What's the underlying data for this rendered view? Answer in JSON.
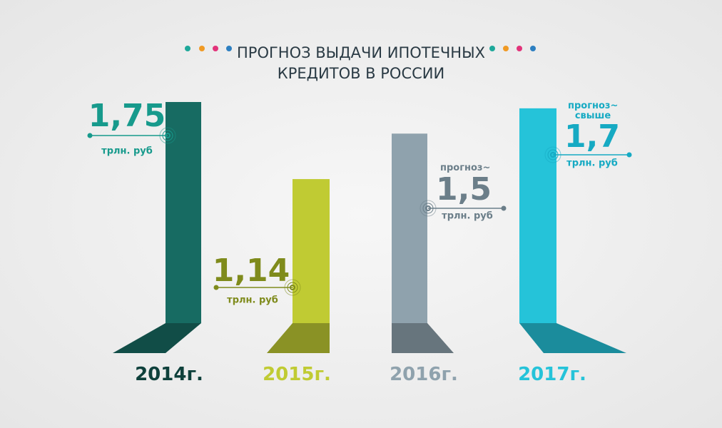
{
  "chart_data": {
    "type": "bar",
    "title": "ПРОГНОЗ ВЫДАЧИ ИПОТЕЧНЫХ КРЕДИТОВ В РОССИИ",
    "categories": [
      "2014г.",
      "2015г.",
      "2016г.",
      "2017г."
    ],
    "values": [
      1.75,
      1.14,
      1.5,
      1.7
    ],
    "value_labels": [
      "1,75",
      "1,14",
      "1,5",
      "1,7"
    ],
    "unit": "трлн. руб",
    "notes": [
      null,
      null,
      "прогноз~",
      "прогноз~ свыше"
    ],
    "colors": [
      "#176b62",
      "#c0cb33",
      "#8fa2ad",
      "#25c3d9"
    ],
    "label_colors": [
      "#179a8c",
      "#7f8b1c",
      "#6b7e89",
      "#16aac3"
    ]
  }
}
